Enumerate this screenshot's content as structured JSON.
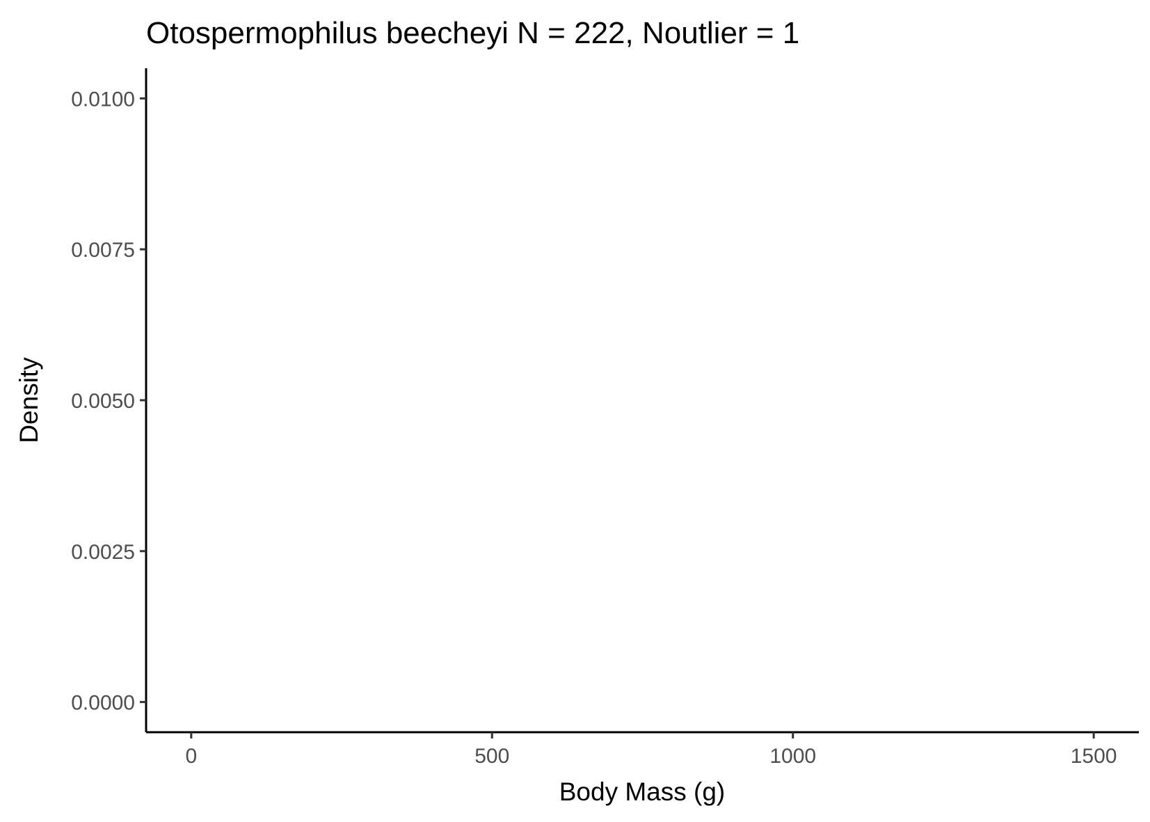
{
  "chart_data": {
    "type": "area",
    "title": "Otospermophilus beecheyi N = 222, Noutlier = 1",
    "xlabel": "Body Mass (g)",
    "ylabel": "Density",
    "xlim": [
      -75,
      1575
    ],
    "ylim": [
      -0.0005,
      0.0105
    ],
    "x_ticks": [
      0,
      500,
      1000,
      1500
    ],
    "x_tick_labels": [
      "0",
      "500",
      "1000",
      "1500"
    ],
    "y_ticks": [
      0,
      0.0025,
      0.005,
      0.0075,
      0.01
    ],
    "y_tick_labels": [
      "0.0000",
      "0.0025",
      "0.0050",
      "0.0075",
      "0.0100"
    ],
    "series": [],
    "grid": false,
    "legend": "none"
  }
}
